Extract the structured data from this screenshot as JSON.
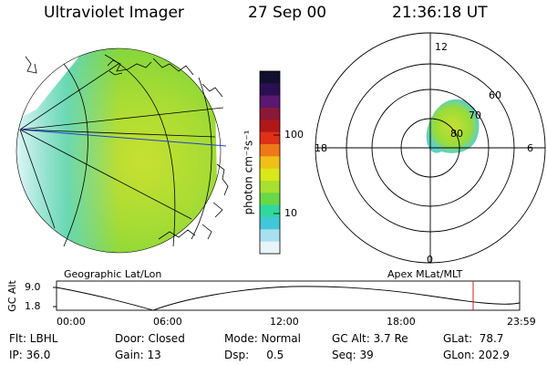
{
  "header": {
    "instrument": "Ultraviolet Imager",
    "date": "27 Sep 00",
    "time": "21:36:18 UT"
  },
  "geo_panel": {
    "label": "Geographic Lat/Lon"
  },
  "colorbar": {
    "title": "photon cm⁻²s⁻¹",
    "ticks": [
      "100",
      "10"
    ],
    "colors": [
      "#101030",
      "#2a1050",
      "#5a1870",
      "#8a1838",
      "#b01818",
      "#e03018",
      "#f07818",
      "#f0c018",
      "#d8e818",
      "#a8e030",
      "#68d848",
      "#30d8a0",
      "#40c8d8",
      "#a8e0f0",
      "#e8f4f8"
    ]
  },
  "polar_panel": {
    "label": "Apex MLat/MLT",
    "mlt_labels": {
      "top": "12",
      "right": "6",
      "bottom": "0",
      "left": "18"
    },
    "mlat_labels": [
      "60",
      "70",
      "80"
    ]
  },
  "timeline": {
    "ylabel": "GC Alt",
    "yticks": [
      "9.0",
      "1.8"
    ],
    "xticks": [
      "00:00",
      "06:00",
      "12:00",
      "18:00",
      "23:59"
    ],
    "marker_time": "21:36"
  },
  "status": {
    "flt": "Flt: LBHL",
    "ip": "IP: 36.0",
    "door": "Door: Closed",
    "gain": "Gain: 13",
    "mode": "Mode: Normal",
    "dsp": "Dsp:     0.5",
    "gc_alt": "GC Alt: 3.7 Re",
    "seq": "Seq: 39",
    "glat": "GLat:  78.7",
    "glon": "GLon: 202.9"
  },
  "colors": {
    "aurora_green": "#8cd838",
    "aurora_yellow": "#c8e030",
    "aurora_cyan": "#40d0d8",
    "marker_red": "#d02020",
    "lon_line_blue": "#2040d0"
  }
}
